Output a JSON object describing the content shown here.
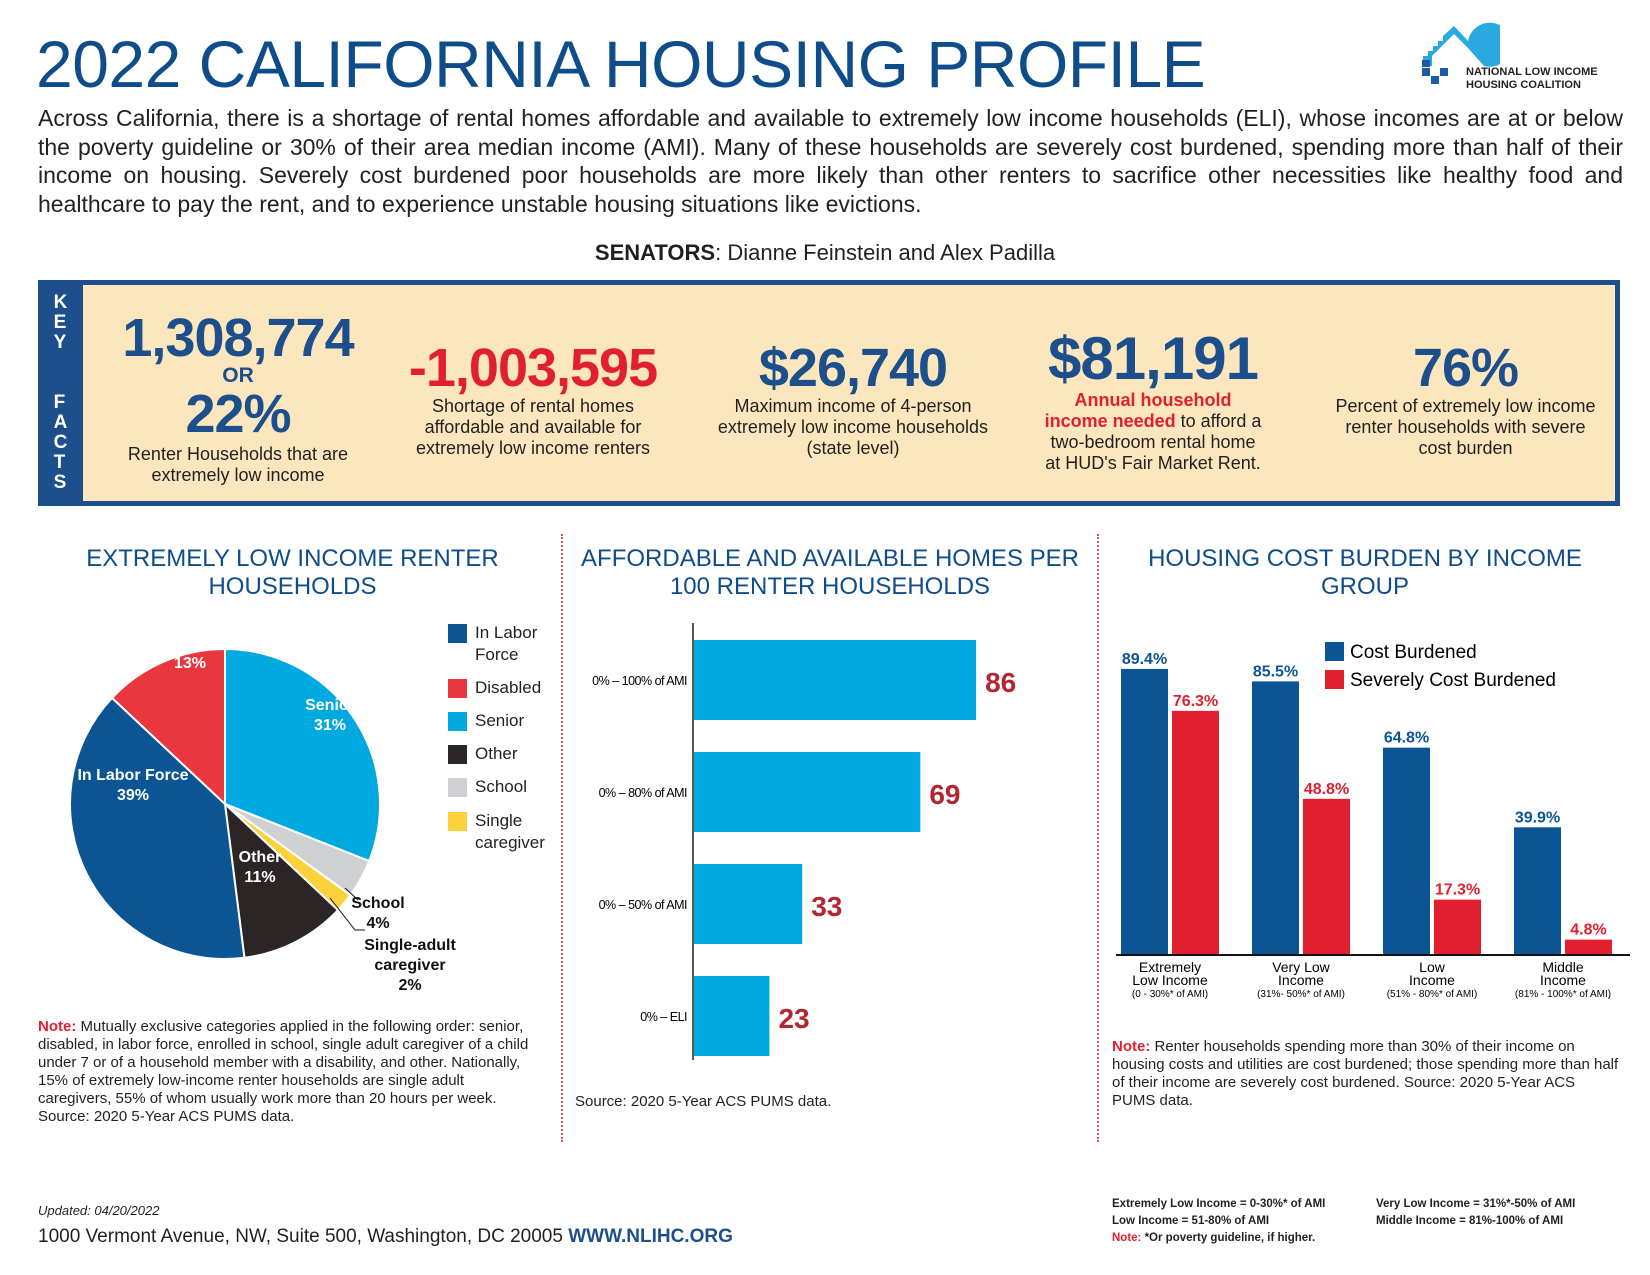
{
  "title": "2022 CALIFORNIA HOUSING PROFILE",
  "logo": {
    "line1": "NATIONAL LOW INCOME",
    "line2": "HOUSING COALITION"
  },
  "intro": "Across California, there is a shortage of rental homes affordable and available to extremely low income households (ELI), whose incomes are at or below the poverty guideline or 30% of their area median income (AMI). Many of these households are severely cost burdened, spending more than half of their income on housing. Severely cost burdened poor households are more likely than other renters to sacrifice other necessities like healthy food and healthcare to pay the rent, and to experience unstable housing situations like evictions.",
  "senators": {
    "label": "SENATORS",
    "names": ": Dianne Feinstein and Alex Padilla"
  },
  "key_facts": {
    "label": "KEY FACTS",
    "f1": {
      "value": "1,308,774",
      "or": "OR",
      "pct": "22%",
      "desc": "Renter Households that are extremely low income"
    },
    "f2": {
      "value": "-1,003,595",
      "desc": "Shortage of rental homes affordable and available for extremely low income renters"
    },
    "f3": {
      "value": "$26,740",
      "desc": "Maximum income of 4-person extremely low income households (state level)"
    },
    "f4": {
      "value": "$81,191",
      "desc_red": "Annual household income needed",
      "desc": " to afford a two-bedroom rental home at HUD's Fair Market Rent."
    },
    "f5": {
      "value": "76%",
      "desc": "Percent of extremely low income renter households with severe cost burden"
    }
  },
  "chart_data": [
    {
      "type": "pie",
      "title": "EXTREMELY LOW INCOME RENTER HOUSEHOLDS",
      "slices": [
        {
          "name": "Senior",
          "value": 31,
          "label": "31%",
          "color": "#00a9e0"
        },
        {
          "name": "School",
          "value": 4,
          "label": "4%",
          "color": "#cfd0d1"
        },
        {
          "name": "Single-adult caregiver",
          "value": 2,
          "label": "2%",
          "color": "#fcd23c"
        },
        {
          "name": "Other",
          "value": 11,
          "label": "11%",
          "color": "#2b2526"
        },
        {
          "name": "In Labor Force",
          "value": 39,
          "label": "39%",
          "color": "#0b5595"
        },
        {
          "name": "Disabled",
          "value": 13,
          "label": "13%",
          "color": "#e8373f"
        }
      ],
      "legend": [
        "In Labor Force",
        "Disabled",
        "Senior",
        "Other",
        "School",
        "Single caregiver"
      ],
      "legend_colors": [
        "#0b5595",
        "#e8373f",
        "#00a9e0",
        "#2b2526",
        "#cfd0d1",
        "#fcd23c"
      ],
      "note_label": "Note:",
      "note": " Mutually exclusive categories applied in the following order: senior, disabled, in labor force, enrolled in school, single adult caregiver of a child under 7 or of a household member with a disability, and other. Nationally, 15% of extremely low-income renter households are single adult caregivers, 55% of whom usually work more than 20 hours per week. Source: 2020 5-Year  ACS PUMS data."
    },
    {
      "type": "bar",
      "orientation": "horizontal",
      "title": "AFFORDABLE AND AVAILABLE HOMES PER 100 RENTER HOUSEHOLDS",
      "categories": [
        "0% – 100% of AMI",
        "0% – 80% of AMI",
        "0% – 50% of AMI",
        "0% – ELI"
      ],
      "values": [
        86,
        69,
        33,
        23
      ],
      "color": "#00a9e0",
      "label_color": "#b32530",
      "source": "Source: 2020 5-Year  ACS PUMS data."
    },
    {
      "type": "bar",
      "title": "HOUSING COST BURDEN BY INCOME GROUP",
      "categories": [
        [
          "Extremely",
          "Low Income",
          "(0 - 30%* of AMI)"
        ],
        [
          "Very Low",
          "Income",
          "(31%- 50%* of AMI)"
        ],
        [
          "Low",
          "Income",
          "(51% - 80%* of AMI)"
        ],
        [
          "Middle",
          "Income",
          "(81% - 100%* of AMI)"
        ]
      ],
      "series": [
        {
          "name": "Cost Burdened",
          "values": [
            89.4,
            85.5,
            64.8,
            39.9
          ],
          "labels": [
            "89.4%",
            "85.5%",
            "64.8%",
            "39.9%"
          ],
          "color": "#0b5595"
        },
        {
          "name": "Severely Cost Burdened",
          "values": [
            76.3,
            48.8,
            17.3,
            4.8
          ],
          "labels": [
            "76.3%",
            "48.8%",
            "17.3%",
            "4.8%"
          ],
          "color": "#e21f2f"
        }
      ],
      "ylim": [
        0,
        100
      ],
      "note_label": "Note:",
      "note": " Renter households spending more than 30% of their income on housing costs and utilities are cost burdened; those spending more than half of their income are severely cost burdened. Source: 2020 5-Year ACS PUMS data."
    }
  ],
  "footer": {
    "updated": "Updated: 04/20/2022",
    "address": "1000 Vermont Avenue, NW, Suite 500, Washington, DC 20005 ",
    "url": "WWW.NLIHC.ORG",
    "key": [
      "Extremely Low Income = 0-30%* of AMI",
      "Very Low Income = 31%*-50% of AMI",
      "Low Income = 51-80% of AMI",
      "Middle Income = 81%-100% of AMI"
    ],
    "note_label": "Note:",
    "note": " *Or poverty guideline, if higher."
  }
}
